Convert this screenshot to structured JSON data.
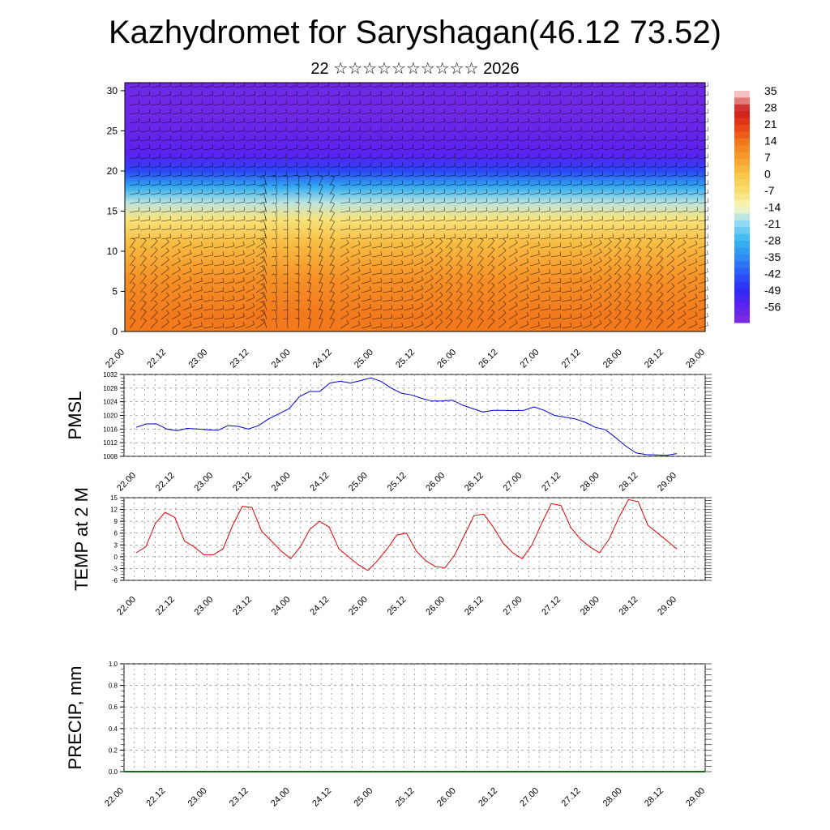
{
  "title": "Kazhydromet for Saryshagan(46.12 73.52)",
  "subtitle": "22 ☆☆☆☆☆☆☆☆☆☆ 2026",
  "x_ticks": [
    "22.00",
    "22.12",
    "23.00",
    "23.12",
    "24.00",
    "24.12",
    "25.00",
    "25.12",
    "26.00",
    "26.12",
    "27.00",
    "27.12",
    "28.00",
    "28.12",
    "29.00"
  ],
  "colorbar": {
    "labels": [
      "35",
      "28",
      "21",
      "14",
      "7",
      "0",
      "-7",
      "-14",
      "-21",
      "-28",
      "-35",
      "-42",
      "-49",
      "-56"
    ]
  },
  "chart_data": [
    {
      "type": "heatmap",
      "name": "cross-section",
      "y_ticks": [
        "0",
        "5",
        "10",
        "15",
        "20",
        "25",
        "30"
      ],
      "ylim": [
        0,
        31
      ],
      "x_range": [
        0,
        14
      ],
      "description_series": "temperature shading with wind barbs",
      "bands": [
        {
          "y_from": 0,
          "y_to": 4,
          "value": 14
        },
        {
          "y_from": 4,
          "y_to": 9,
          "value": 10
        },
        {
          "y_from": 9,
          "y_to": 13,
          "value": 2
        },
        {
          "y_from": 13,
          "y_to": 15,
          "value": -8
        },
        {
          "y_from": 15,
          "y_to": 17,
          "value": -18
        },
        {
          "y_from": 17,
          "y_to": 19,
          "value": -30
        },
        {
          "y_from": 19,
          "y_to": 21,
          "value": -45
        },
        {
          "y_from": 21,
          "y_to": 23,
          "value": -56
        },
        {
          "y_from": 23,
          "y_to": 31,
          "value": -60
        }
      ]
    },
    {
      "type": "line",
      "name": "PMSL",
      "ylabel": "PMSL",
      "ylim": [
        1008,
        1032
      ],
      "y_ticks": [
        "1008",
        "1012",
        "1016",
        "1020",
        "1024",
        "1028",
        "1032"
      ],
      "color": "#0000cc",
      "series": [
        {
          "name": "PMSL",
          "values": [
            1016.5,
            1017.5,
            1017.5,
            1016.0,
            1015.5,
            1016.2,
            1016.0,
            1015.8,
            1015.6,
            1017.0,
            1016.8,
            1016.0,
            1017.0,
            1019.0,
            1020.5,
            1022.0,
            1025.5,
            1027.0,
            1027.0,
            1029.5,
            1030.0,
            1029.5,
            1030.2,
            1031.0,
            1030.0,
            1028.0,
            1026.5,
            1026.0,
            1025.0,
            1024.2,
            1024.2,
            1024.5,
            1023.0,
            1022.0,
            1021.0,
            1021.5,
            1021.5,
            1021.4,
            1021.5,
            1022.5,
            1021.5,
            1020.0,
            1019.5,
            1019.0,
            1018.0,
            1016.5,
            1015.8,
            1013.5,
            1011.0,
            1009.0,
            1008.5,
            1008.4,
            1008.3,
            1008.8
          ]
        }
      ]
    },
    {
      "type": "line",
      "name": "TEMP at 2 M",
      "ylabel": "TEMP at 2 M",
      "ylim": [
        -6,
        15
      ],
      "y_ticks": [
        "-6",
        "-3",
        "0",
        "3",
        "6",
        "9",
        "12",
        "15"
      ],
      "color": "#dd0000",
      "series": [
        {
          "name": "TEMP",
          "values": [
            1.0,
            2.5,
            8.5,
            11.3,
            10.0,
            4.0,
            2.5,
            0.5,
            0.5,
            2.0,
            8.0,
            12.8,
            12.5,
            6.5,
            4.0,
            1.5,
            -0.5,
            2.5,
            7.0,
            9.0,
            7.5,
            2.0,
            0.0,
            -2.0,
            -3.5,
            -1.0,
            2.0,
            5.5,
            6.0,
            1.5,
            -1.0,
            -2.5,
            -2.8,
            0.5,
            5.5,
            10.5,
            10.8,
            7.5,
            3.5,
            1.0,
            -0.5,
            3.0,
            8.5,
            13.5,
            13.0,
            7.5,
            4.5,
            2.5,
            1.0,
            4.5,
            10.0,
            14.5,
            14.0,
            8.0,
            6.0,
            4.0,
            2.0
          ]
        }
      ]
    },
    {
      "type": "bar",
      "name": "PRECIP",
      "ylabel": "PRECIP, mm",
      "ylim": [
        0,
        1.0
      ],
      "y_ticks": [
        "0.0",
        "0.2",
        "0.4",
        "0.6",
        "0.8",
        "1.0"
      ],
      "values": []
    }
  ]
}
